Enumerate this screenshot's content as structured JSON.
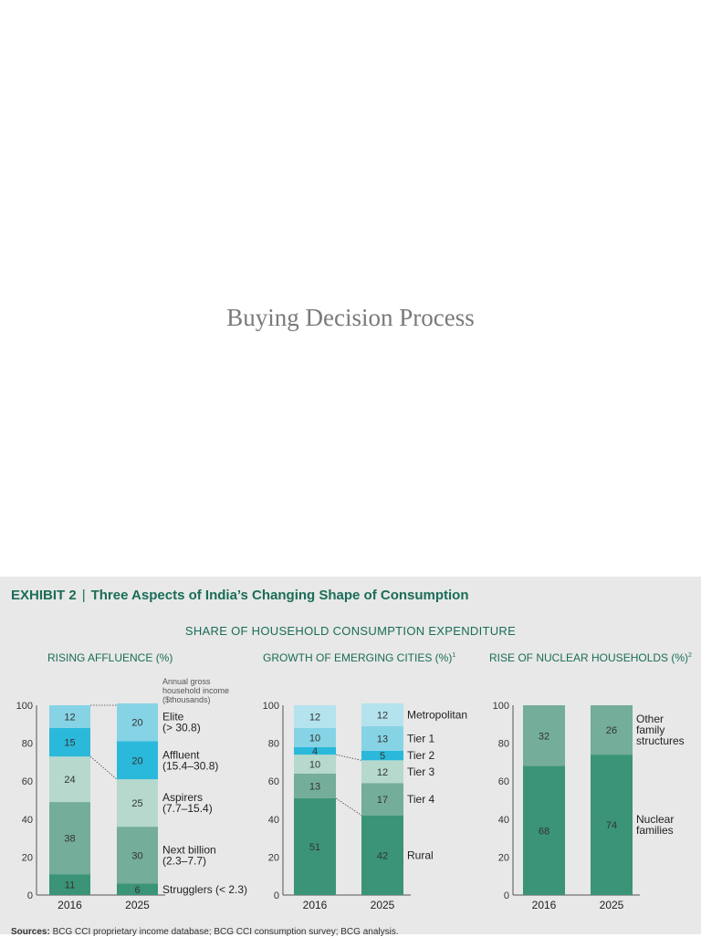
{
  "slide_title": "Buying Decision Process",
  "exhibit": {
    "label": "EXHIBIT 2",
    "separator": "|",
    "title": "Three Aspects of India’s Changing Shape of Consumption",
    "subtitle": "SHARE OF HOUSEHOLD CONSUMPTION EXPENDITURE"
  },
  "source_label": "Sources:",
  "source_text": "BCG CCI proprietary income database; BCG CCI consumption survey; BCG analysis.",
  "chart_data": [
    {
      "type": "bar",
      "stacked": true,
      "title": "RISING AFFLUENCE (%)",
      "note": [
        "Annual gross",
        "household income",
        "($thousands)"
      ],
      "categories": [
        "2016",
        "2025"
      ],
      "ylim": [
        0,
        100
      ],
      "yticks": [
        "0",
        "20",
        "40",
        "60",
        "80",
        "100"
      ],
      "series": [
        {
          "name": "Strugglers (< 2.3)",
          "values": [
            11,
            6
          ],
          "color": "#3b9477"
        },
        {
          "name": "Next billion (2.3–7.7)",
          "values": [
            38,
            30
          ],
          "color": "#74ad99"
        },
        {
          "name": "Aspirers (7.7–15.4)",
          "values": [
            24,
            25
          ],
          "color": "#b6d8cd"
        },
        {
          "name": "Affluent (15.4–30.8)",
          "values": [
            15,
            20
          ],
          "color": "#2ab9da"
        },
        {
          "name": "Elite (> 30.8)",
          "values": [
            12,
            20
          ],
          "color": "#86d3e5"
        }
      ]
    },
    {
      "type": "bar",
      "stacked": true,
      "title": "GROWTH OF EMERGING CITIES (%)",
      "title_sup": "1",
      "categories": [
        "2016",
        "2025"
      ],
      "ylim": [
        0,
        100
      ],
      "yticks": [
        "0",
        "20",
        "40",
        "60",
        "80",
        "100"
      ],
      "series": [
        {
          "name": "Rural",
          "values": [
            51,
            42
          ],
          "color": "#3b9477"
        },
        {
          "name": "Tier 4",
          "values": [
            13,
            17
          ],
          "color": "#74ad99"
        },
        {
          "name": "Tier 3",
          "values": [
            10,
            12
          ],
          "color": "#b6d8cd"
        },
        {
          "name": "Tier 2",
          "values": [
            4,
            5
          ],
          "color": "#2ab9da"
        },
        {
          "name": "Tier 1",
          "values": [
            10,
            13
          ],
          "color": "#86d3e5"
        },
        {
          "name": "Metropolitan",
          "values": [
            12,
            12
          ],
          "color": "#b4e3ee"
        }
      ]
    },
    {
      "type": "bar",
      "stacked": true,
      "title": "RISE OF NUCLEAR HOUSEHOLDS (%)",
      "title_sup": "2",
      "categories": [
        "2016",
        "2025"
      ],
      "ylim": [
        0,
        100
      ],
      "yticks": [
        "0",
        "20",
        "40",
        "60",
        "80",
        "100"
      ],
      "series": [
        {
          "name": "Nuclear families",
          "values": [
            68,
            74
          ],
          "color": "#3b9477"
        },
        {
          "name": "Other family structures",
          "values": [
            32,
            26
          ],
          "color": "#74ad99"
        }
      ]
    }
  ]
}
